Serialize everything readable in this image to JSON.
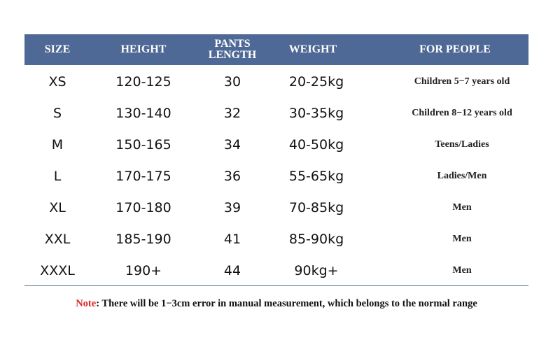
{
  "colors": {
    "header_bg": "#4f6996",
    "note_label": "#d8282a"
  },
  "headers": [
    "SIZE",
    "HEIGHT",
    "PANTS LENGTH",
    "WEIGHT",
    "FOR PEOPLE"
  ],
  "rows": [
    [
      "XS",
      "120-125",
      "30",
      "20-25kg",
      "Children 5−7 years old"
    ],
    [
      "S",
      "130-140",
      "32",
      "30-35kg",
      "Children 8−12 years old"
    ],
    [
      "M",
      "150-165",
      "34",
      "40-50kg",
      "Teens/Ladies"
    ],
    [
      "L",
      "170-175",
      "36",
      "55-65kg",
      "Ladies/Men"
    ],
    [
      "XL",
      "170-180",
      "39",
      "70-85kg",
      "Men"
    ],
    [
      "XXL",
      "185-190",
      "41",
      "85-90kg",
      "Men"
    ],
    [
      "XXXL",
      "190+",
      "44",
      "90kg+",
      "Men"
    ]
  ],
  "note": {
    "label": "Note",
    "text": ": There will be 1−3cm error in manual measurement, which belongs to the normal range"
  }
}
